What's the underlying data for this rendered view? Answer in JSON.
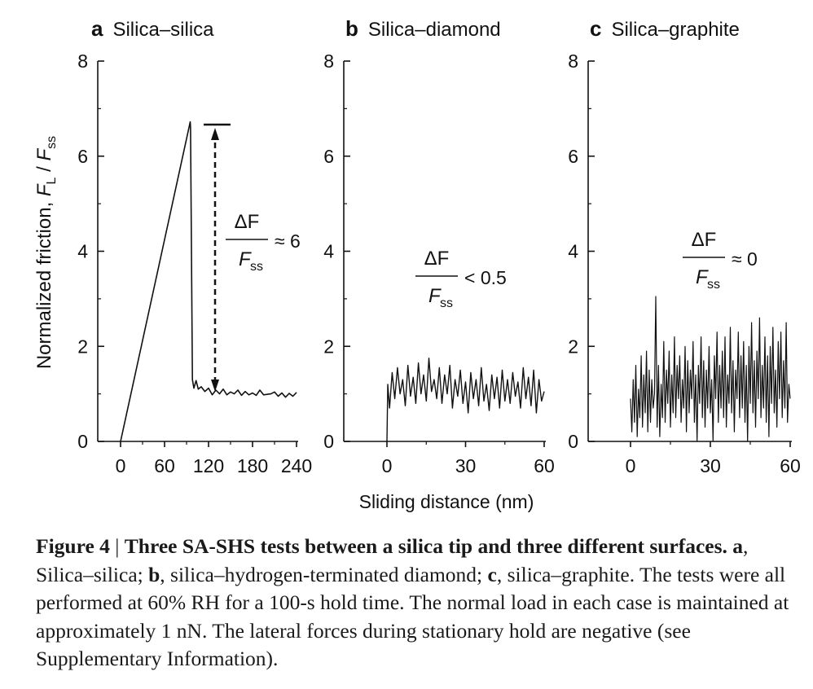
{
  "chart_data": [
    {
      "type": "line",
      "panel_letter": "a",
      "title": "Silica–silica",
      "xlim": [
        0,
        240
      ],
      "ylim": [
        0,
        8
      ],
      "xticks": [
        "0",
        "60",
        "120",
        "180",
        "240"
      ],
      "yticks": [
        "0",
        "2",
        "4",
        "6",
        "8"
      ],
      "annotation": {
        "num": "ΔF",
        "den": "F",
        "den_sub": "ss",
        "relation": "≈ 6"
      },
      "series": [
        {
          "x": [
            0,
            95,
            95.5,
            98,
            100,
            103,
            106,
            110,
            115,
            120,
            125,
            130,
            135,
            140,
            145,
            150,
            155,
            160,
            165,
            170,
            175,
            180,
            185,
            190,
            195,
            200,
            205,
            210,
            215,
            220,
            225,
            230,
            235,
            240
          ],
          "y": [
            0,
            6.72,
            6.6,
            1.3,
            1.12,
            1.28,
            1.1,
            1.15,
            1.05,
            1.12,
            0.98,
            1.08,
            1.0,
            1.1,
            0.98,
            1.04,
            1.0,
            1.08,
            0.97,
            1.05,
            0.98,
            1.02,
            0.97,
            1.08,
            0.98,
            0.99,
            1.0,
            1.04,
            0.95,
            1.02,
            0.93,
            1.01,
            0.95,
            1.03
          ]
        }
      ]
    },
    {
      "type": "line",
      "panel_letter": "b",
      "title": "Silica–diamond",
      "xlim": [
        0,
        60
      ],
      "ylim": [
        0,
        8
      ],
      "xticks": [
        "0",
        "30",
        "60"
      ],
      "yticks": [
        "0",
        "2",
        "4",
        "6",
        "8"
      ],
      "annotation": {
        "num": "ΔF",
        "den": "F",
        "den_sub": "ss",
        "relation": "< 0.5"
      },
      "series": [
        {
          "x": [
            0,
            0.3,
            1,
            2,
            3,
            4,
            5,
            6,
            7,
            8,
            9,
            10,
            11,
            12,
            13,
            14,
            15,
            16,
            17,
            18,
            19,
            20,
            21,
            22,
            23,
            24,
            25,
            26,
            27,
            28,
            29,
            30,
            31,
            32,
            33,
            34,
            35,
            36,
            37,
            38,
            39,
            40,
            41,
            42,
            43,
            44,
            45,
            46,
            47,
            48,
            49,
            50,
            51,
            52,
            53,
            54,
            55,
            56,
            57,
            58,
            59,
            60
          ],
          "y": [
            0,
            1.2,
            0.7,
            1.45,
            0.9,
            1.55,
            1.0,
            1.3,
            0.75,
            1.6,
            0.95,
            1.35,
            0.8,
            1.65,
            1.0,
            1.4,
            0.85,
            1.75,
            1.05,
            1.3,
            0.9,
            1.55,
            0.8,
            1.4,
            1.0,
            1.6,
            0.7,
            1.3,
            0.95,
            1.5,
            0.8,
            1.25,
            0.6,
            1.45,
            0.9,
            1.3,
            0.75,
            1.55,
            0.85,
            1.2,
            0.65,
            1.4,
            0.9,
            1.35,
            0.7,
            1.5,
            0.85,
            1.3,
            0.8,
            1.45,
            0.95,
            1.25,
            0.7,
            1.55,
            0.9,
            1.35,
            0.75,
            1.5,
            0.6,
            1.3,
            0.85,
            1.05
          ]
        }
      ]
    },
    {
      "type": "line",
      "panel_letter": "c",
      "title": "Silica–graphite",
      "xlim": [
        0,
        60
      ],
      "ylim": [
        0,
        8
      ],
      "xticks": [
        "0",
        "30",
        "60"
      ],
      "yticks": [
        "0",
        "2",
        "4",
        "6",
        "8"
      ],
      "annotation": {
        "num": "ΔF",
        "den": "F",
        "den_sub": "ss",
        "relation": "≈ 0"
      },
      "series": [
        {
          "x": [
            0,
            0.5,
            1,
            1.5,
            2,
            2.5,
            3,
            3.5,
            4,
            4.5,
            5,
            5.5,
            6,
            6.5,
            7,
            7.5,
            8,
            8.5,
            9,
            9.5,
            10,
            10.5,
            11,
            11.5,
            12,
            12.5,
            13,
            13.5,
            14,
            14.5,
            15,
            15.5,
            16,
            16.5,
            17,
            17.5,
            18,
            18.5,
            19,
            19.5,
            20,
            20.5,
            21,
            21.5,
            22,
            22.5,
            23,
            23.5,
            24,
            24.5,
            25,
            25.5,
            26,
            26.5,
            27,
            27.5,
            28,
            28.5,
            29,
            29.5,
            30,
            30.5,
            31,
            31.5,
            32,
            32.5,
            33,
            33.5,
            34,
            34.5,
            35,
            35.5,
            36,
            36.5,
            37,
            37.5,
            38,
            38.5,
            39,
            39.5,
            40,
            40.5,
            41,
            41.5,
            42,
            42.5,
            43,
            43.5,
            44,
            44.5,
            45,
            45.5,
            46,
            46.5,
            47,
            47.5,
            48,
            48.5,
            49,
            49.5,
            50,
            50.5,
            51,
            51.5,
            52,
            52.5,
            53,
            53.5,
            54,
            54.5,
            55,
            55.5,
            56,
            56.5,
            57,
            57.5,
            58,
            58.5,
            59,
            59.5,
            60
          ],
          "y": [
            0.9,
            0.2,
            1.3,
            0.4,
            1.6,
            0.1,
            1.1,
            0.5,
            1.8,
            0.3,
            1.4,
            0.6,
            1.9,
            0.2,
            1.5,
            0.4,
            1.3,
            0.7,
            1.0,
            3.05,
            0.3,
            1.6,
            0.1,
            1.2,
            0.5,
            2.1,
            0.4,
            1.5,
            0.8,
            1.9,
            0.3,
            1.4,
            0.6,
            2.2,
            0.5,
            1.6,
            0.9,
            1.8,
            0.4,
            1.3,
            0.7,
            2.0,
            0.2,
            1.7,
            0.6,
            1.5,
            0.9,
            2.1,
            0.4,
            1.4,
            0.0,
            1.6,
            0.8,
            2.2,
            0.5,
            1.7,
            0.3,
            1.5,
            0.7,
            2.0,
            0.6,
            1.3,
            0.0,
            1.8,
            0.9,
            2.3,
            0.4,
            1.6,
            0.7,
            1.9,
            0.5,
            2.2,
            0.3,
            1.4,
            0.8,
            2.4,
            0.6,
            1.7,
            0.2,
            1.5,
            0.9,
            2.3,
            0.5,
            1.8,
            0.7,
            2.1,
            0.4,
            1.6,
            0.0,
            2.0,
            0.8,
            2.5,
            0.6,
            1.7,
            0.3,
            1.9,
            0.9,
            2.6,
            0.5,
            1.6,
            0.7,
            2.2,
            0.4,
            1.8,
            0.1,
            2.0,
            0.8,
            2.4,
            0.6,
            1.5,
            0.3,
            2.1,
            0.9,
            2.3,
            0.5,
            1.7,
            0.7,
            2.5,
            0.4,
            1.2,
            0.9
          ]
        }
      ]
    }
  ],
  "shared": {
    "ylabel_main": "Normalized friction, ",
    "ylabel_F": "F",
    "ylabel_L": "L",
    "ylabel_slash": " / ",
    "ylabel_F2": "F",
    "ylabel_ss": "ss",
    "xlabel": "Sliding distance (nm)"
  },
  "caption": {
    "label": "Figure 4",
    "separator": "|",
    "title": "Three SA-SHS tests between a silica tip and three different surfaces.",
    "a_letter": "a",
    "a_text": ", Silica–silica; ",
    "b_letter": "b",
    "b_text": ", silica–hydrogen-terminated diamond; ",
    "c_letter": "c",
    "c_text": ", silica–graphite. The tests were all performed at 60% RH for a 100-s hold time. The normal load in each case is maintained at approximately 1 nN. The lateral forces during stationary hold are negative (see Supplementary Information)."
  }
}
